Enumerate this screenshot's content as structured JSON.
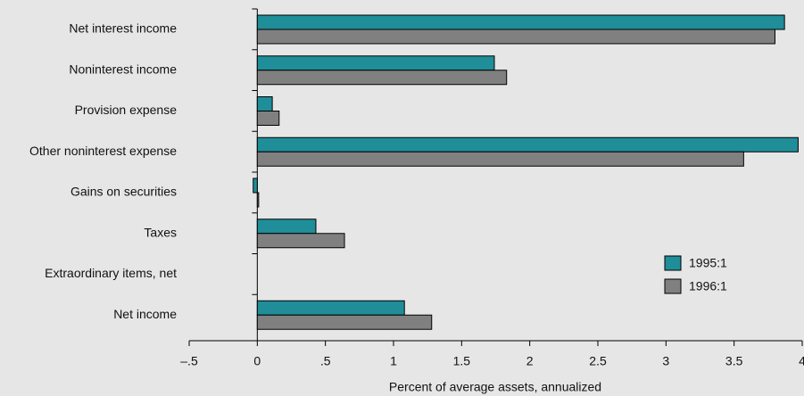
{
  "chart_data": {
    "type": "barh",
    "xlabel": "Percent of average assets, annualized",
    "categories": [
      "Net interest income",
      "Noninterest income",
      "Provision expense",
      "Other noninterest expense",
      "Gains on securities",
      "Taxes",
      "Extraordinary items, net",
      "Net income"
    ],
    "series": [
      {
        "name": "1995:1",
        "color": "#1f8e99",
        "values": [
          3.87,
          1.74,
          0.11,
          3.97,
          -0.03,
          0.43,
          0,
          1.08
        ]
      },
      {
        "name": "1996:1",
        "color": "#808080",
        "values": [
          3.8,
          1.83,
          0.16,
          3.57,
          0.01,
          0.64,
          0,
          1.28
        ]
      }
    ],
    "xlim": [
      -0.5,
      4
    ],
    "xticks": [
      {
        "value": -0.5,
        "label": "–.5"
      },
      0,
      {
        "value": 0.5,
        "label": ".5"
      },
      1,
      1.5,
      2,
      2.5,
      3,
      3.5,
      4
    ],
    "legend": "lower right"
  }
}
